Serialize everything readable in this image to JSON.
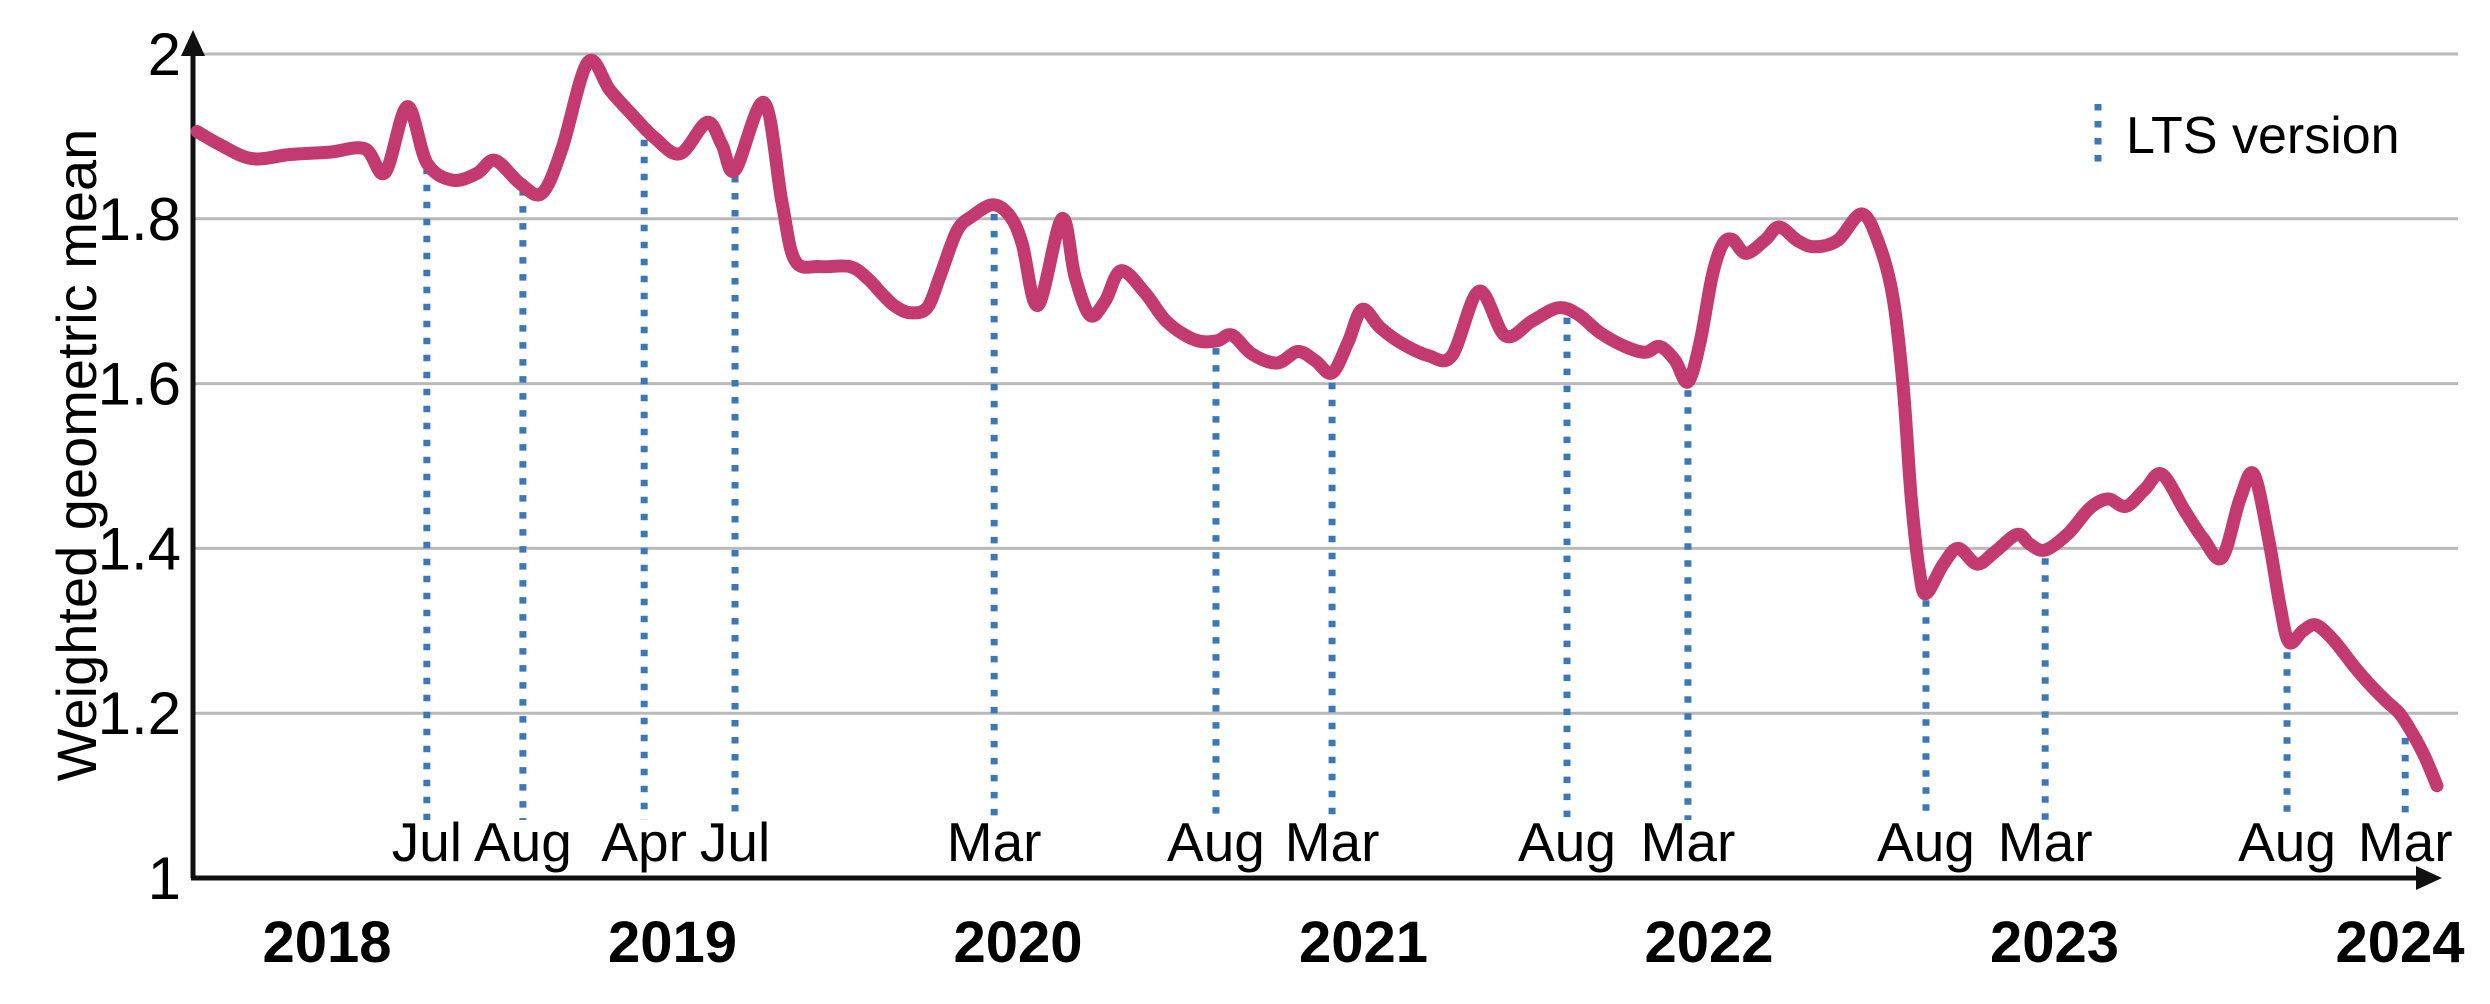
{
  "chart_data": {
    "type": "line",
    "title": "",
    "xlabel": "",
    "ylabel": "Weighted geometric mean",
    "ylim": [
      1,
      2
    ],
    "xlim_years": [
      2017.61,
      2024.18
    ],
    "grid": "horizontal",
    "y_gridline_values": [
      2,
      1.8,
      1.6,
      1.4,
      1.2
    ],
    "y_ticks": [
      {
        "v": 2,
        "label": "2"
      },
      {
        "v": 1.8,
        "label": "1.8"
      },
      {
        "v": 1.6,
        "label": "1.6"
      },
      {
        "v": 1.4,
        "label": "1.4"
      },
      {
        "v": 1.2,
        "label": "1.2"
      },
      {
        "v": 1,
        "label": "1"
      }
    ],
    "x_ticks": [
      {
        "t": 2018,
        "label": "2018"
      },
      {
        "t": 2019,
        "label": "2019"
      },
      {
        "t": 2020,
        "label": "2020"
      },
      {
        "t": 2021,
        "label": "2021"
      },
      {
        "t": 2022,
        "label": "2022"
      },
      {
        "t": 2023,
        "label": "2023"
      },
      {
        "t": 2024,
        "label": "2024"
      }
    ],
    "legend": {
      "label": "LTS version",
      "position": "top-right"
    },
    "lts_markers": [
      {
        "label": "Jul",
        "t": 2018.289,
        "v_top": 1.862
      },
      {
        "label": "Aug",
        "t": 2018.567,
        "v_top": 1.836
      },
      {
        "label": "Apr",
        "t": 2018.918,
        "v_top": 1.896
      },
      {
        "label": "Jul",
        "t": 2019.181,
        "v_top": 1.852
      },
      {
        "label": "Mar",
        "t": 2019.931,
        "v_top": 1.806
      },
      {
        "label": "Aug",
        "t": 2020.573,
        "v_top": 1.643
      },
      {
        "label": "Mar",
        "t": 2020.909,
        "v_top": 1.601
      },
      {
        "label": "Aug",
        "t": 2021.589,
        "v_top": 1.68
      },
      {
        "label": "Mar",
        "t": 2021.939,
        "v_top": 1.592
      },
      {
        "label": "Aug",
        "t": 2022.628,
        "v_top": 1.337
      },
      {
        "label": "Mar",
        "t": 2022.973,
        "v_top": 1.388
      },
      {
        "label": "Aug",
        "t": 2023.673,
        "v_top": 1.274
      },
      {
        "label": "Mar",
        "t": 2024.015,
        "v_top": 1.17
      }
    ],
    "series": [
      {
        "name": "weighted-geometric-mean",
        "color": "#c23a6f",
        "points": [
          [
            2017.624,
            1.906
          ],
          [
            2017.69,
            1.89
          ],
          [
            2017.783,
            1.873
          ],
          [
            2017.893,
            1.878
          ],
          [
            2018.009,
            1.881
          ],
          [
            2018.11,
            1.885
          ],
          [
            2018.168,
            1.856
          ],
          [
            2018.232,
            1.936
          ],
          [
            2018.289,
            1.868
          ],
          [
            2018.362,
            1.847
          ],
          [
            2018.434,
            1.855
          ],
          [
            2018.486,
            1.871
          ],
          [
            2018.559,
            1.843
          ],
          [
            2018.622,
            1.831
          ],
          [
            2018.68,
            1.885
          ],
          [
            2018.755,
            1.99
          ],
          [
            2018.819,
            1.956
          ],
          [
            2018.886,
            1.925
          ],
          [
            2018.949,
            1.898
          ],
          [
            2019.022,
            1.879
          ],
          [
            2019.1,
            1.917
          ],
          [
            2019.143,
            1.89
          ],
          [
            2019.181,
            1.859
          ],
          [
            2019.265,
            1.941
          ],
          [
            2019.317,
            1.82
          ],
          [
            2019.355,
            1.749
          ],
          [
            2019.427,
            1.742
          ],
          [
            2019.514,
            1.742
          ],
          [
            2019.566,
            1.727
          ],
          [
            2019.606,
            1.709
          ],
          [
            2019.644,
            1.694
          ],
          [
            2019.687,
            1.686
          ],
          [
            2019.737,
            1.692
          ],
          [
            2019.774,
            1.73
          ],
          [
            2019.823,
            1.785
          ],
          [
            2019.867,
            1.803
          ],
          [
            2019.928,
            1.817
          ],
          [
            2019.977,
            1.803
          ],
          [
            2020.012,
            1.77
          ],
          [
            2020.058,
            1.695
          ],
          [
            2020.127,
            1.8
          ],
          [
            2020.165,
            1.73
          ],
          [
            2020.208,
            1.683
          ],
          [
            2020.252,
            1.7
          ],
          [
            2020.298,
            1.737
          ],
          [
            2020.368,
            1.71
          ],
          [
            2020.431,
            1.675
          ],
          [
            2020.512,
            1.653
          ],
          [
            2020.576,
            1.652
          ],
          [
            2020.619,
            1.659
          ],
          [
            2020.677,
            1.636
          ],
          [
            2020.75,
            1.625
          ],
          [
            2020.81,
            1.639
          ],
          [
            2020.86,
            1.628
          ],
          [
            2020.909,
            1.613
          ],
          [
            2020.955,
            1.65
          ],
          [
            2020.996,
            1.69
          ],
          [
            2021.048,
            1.668
          ],
          [
            2021.106,
            1.65
          ],
          [
            2021.187,
            1.634
          ],
          [
            2021.256,
            1.634
          ],
          [
            2021.334,
            1.712
          ],
          [
            2021.41,
            1.658
          ],
          [
            2021.488,
            1.676
          ],
          [
            2021.563,
            1.692
          ],
          [
            2021.621,
            1.684
          ],
          [
            2021.684,
            1.662
          ],
          [
            2021.757,
            1.645
          ],
          [
            2021.815,
            1.638
          ],
          [
            2021.858,
            1.645
          ],
          [
            2021.902,
            1.628
          ],
          [
            2021.939,
            1.602
          ],
          [
            2021.974,
            1.65
          ],
          [
            2022.009,
            1.73
          ],
          [
            2022.038,
            1.768
          ],
          [
            2022.067,
            1.775
          ],
          [
            2022.107,
            1.758
          ],
          [
            2022.162,
            1.774
          ],
          [
            2022.203,
            1.79
          ],
          [
            2022.258,
            1.773
          ],
          [
            2022.307,
            1.766
          ],
          [
            2022.373,
            1.774
          ],
          [
            2022.443,
            1.806
          ],
          [
            2022.495,
            1.766
          ],
          [
            2022.533,
            1.703
          ],
          [
            2022.562,
            1.596
          ],
          [
            2022.585,
            1.463
          ],
          [
            2022.608,
            1.375
          ],
          [
            2022.628,
            1.345
          ],
          [
            2022.677,
            1.38
          ],
          [
            2022.721,
            1.4
          ],
          [
            2022.776,
            1.381
          ],
          [
            2022.828,
            1.396
          ],
          [
            2022.892,
            1.417
          ],
          [
            2022.929,
            1.405
          ],
          [
            2022.973,
            1.398
          ],
          [
            2023.039,
            1.418
          ],
          [
            2023.103,
            1.449
          ],
          [
            2023.155,
            1.46
          ],
          [
            2023.207,
            1.451
          ],
          [
            2023.262,
            1.472
          ],
          [
            2023.311,
            1.49
          ],
          [
            2023.378,
            1.445
          ],
          [
            2023.43,
            1.412
          ],
          [
            2023.485,
            1.389
          ],
          [
            2023.537,
            1.46
          ],
          [
            2023.577,
            1.49
          ],
          [
            2023.621,
            1.408
          ],
          [
            2023.653,
            1.33
          ],
          [
            2023.679,
            1.286
          ],
          [
            2023.719,
            1.3
          ],
          [
            2023.757,
            1.307
          ],
          [
            2023.809,
            1.288
          ],
          [
            2023.867,
            1.257
          ],
          [
            2023.919,
            1.232
          ],
          [
            2023.962,
            1.214
          ],
          [
            2024.0,
            1.199
          ],
          [
            2024.038,
            1.174
          ],
          [
            2024.072,
            1.147
          ],
          [
            2024.107,
            1.112
          ]
        ]
      }
    ]
  },
  "colors": {
    "series_pink": "#c23a6f",
    "lts_blue": "#3d78b6",
    "gridline_gray": "#b9b9b9",
    "axis_black": "#111111",
    "text_black": "#000000",
    "background": "#ffffff"
  }
}
